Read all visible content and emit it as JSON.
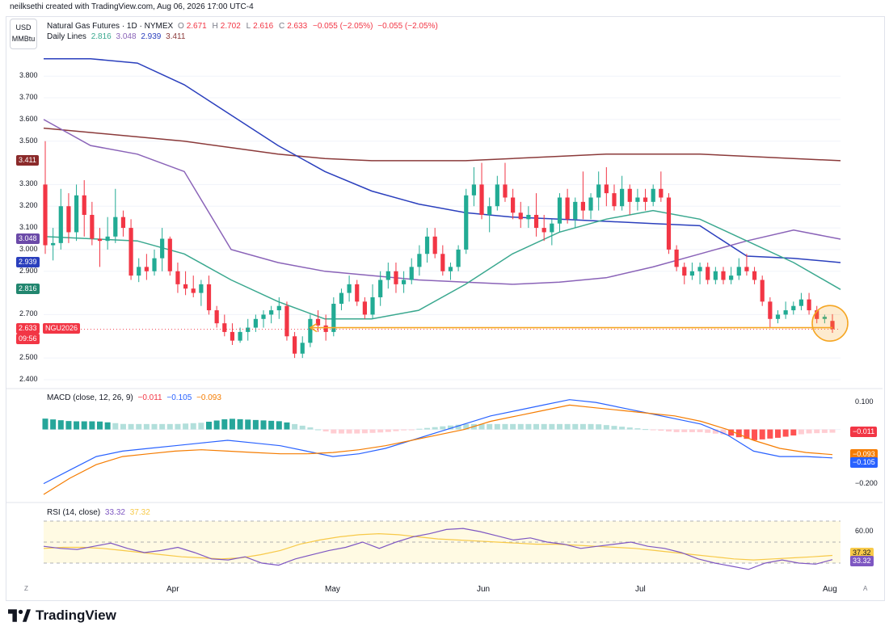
{
  "header": {
    "credit": "neilksethi created with TradingView.com, Aug 06, 2026 17:00 UTC-4"
  },
  "unit": {
    "line1": "USD",
    "line2": "MMBtu"
  },
  "legend": {
    "symbol": "Natural Gas Futures · 1D · NYMEX",
    "o_label": "O",
    "o": "2.671",
    "h_label": "H",
    "h": "2.702",
    "l_label": "L",
    "l": "2.616",
    "c_label": "C",
    "c": "2.633",
    "change": "−0.055 (−2.05%)",
    "change2": "−0.055 (−2.05%)",
    "lines_label": "Daily Lines",
    "line_values": [
      "2.816",
      "3.048",
      "2.939",
      "3.411"
    ]
  },
  "macd_legend": {
    "title": "MACD (close, 12, 26, 9)",
    "v1": "−0.011",
    "v2": "−0.105",
    "v3": "−0.093"
  },
  "rsi_legend": {
    "title": "RSI (14, close)",
    "v1": "33.32",
    "v2": "37.32"
  },
  "colors": {
    "up": "#22ab94",
    "down": "#f23645",
    "ema_green": "#3aa88f",
    "ema_purple": "#8a63b8",
    "sma_blue": "#2a3fbd",
    "sma_brown": "#8b3a3a",
    "macd_line": "#2962ff",
    "signal_line": "#f57c00",
    "rsi_line": "#7e57c2",
    "rsi_ma": "#f7c948",
    "highlight": "#f5a623"
  },
  "price_tags": [
    {
      "value": "3.411",
      "color": "#8b2a2a"
    },
    {
      "value": "3.048",
      "color": "#6b4aa8"
    },
    {
      "value": "2.939",
      "color": "#2a3fbd"
    },
    {
      "value": "2.816",
      "color": "#22866f"
    },
    {
      "value": "2.633",
      "color": "#f23645",
      "extra": "NGU2026",
      "timer": "09:56"
    }
  ],
  "macd_tags": [
    {
      "value": "−0.011",
      "color": "#f23645"
    },
    {
      "value": "−0.093",
      "color": "#f57c00"
    },
    {
      "value": "−0.105",
      "color": "#2962ff"
    }
  ],
  "rsi_tags": [
    {
      "value": "37.32",
      "color": "#f7c948"
    },
    {
      "value": "33.32",
      "color": "#7e57c2"
    }
  ],
  "x_axis": [
    "Apr",
    "May",
    "Jun",
    "Jul",
    "Aug"
  ],
  "corner_labels": {
    "left": "Z",
    "right": "A"
  },
  "brand": "TradingView",
  "chart_data": [
    {
      "type": "candlestick",
      "title": "Natural Gas Futures · 1D · NYMEX",
      "y_ticks": [
        "3.800",
        "3.700",
        "3.600",
        "3.500",
        "3.300",
        "3.200",
        "3.100",
        "3.000",
        "2.900",
        "2.700",
        "2.500",
        "2.400"
      ],
      "ylim": [
        2.37,
        3.92
      ],
      "candles": [
        [
          3.3,
          3.5,
          2.98,
          3.02
        ],
        [
          3.02,
          3.1,
          2.95,
          3.03
        ],
        [
          3.03,
          3.28,
          3.0,
          3.2
        ],
        [
          3.2,
          3.26,
          3.03,
          3.08
        ],
        [
          3.08,
          3.3,
          3.04,
          3.25
        ],
        [
          3.25,
          3.32,
          3.06,
          3.16
        ],
        [
          3.16,
          3.22,
          3.02,
          3.05
        ],
        [
          3.05,
          3.1,
          2.92,
          3.04
        ],
        [
          3.04,
          3.15,
          3.0,
          3.06
        ],
        [
          3.06,
          3.28,
          3.03,
          3.15
        ],
        [
          3.15,
          3.18,
          3.06,
          3.1
        ],
        [
          3.1,
          3.14,
          2.86,
          2.88
        ],
        [
          2.88,
          2.96,
          2.85,
          2.92
        ],
        [
          2.92,
          2.98,
          2.86,
          2.9
        ],
        [
          2.9,
          3.0,
          2.88,
          2.96
        ],
        [
          2.96,
          3.1,
          2.9,
          3.05
        ],
        [
          3.05,
          3.06,
          2.88,
          2.9
        ],
        [
          2.9,
          2.94,
          2.8,
          2.84
        ],
        [
          2.84,
          2.9,
          2.79,
          2.82
        ],
        [
          2.82,
          2.88,
          2.78,
          2.8
        ],
        [
          2.8,
          2.86,
          2.74,
          2.84
        ],
        [
          2.84,
          2.88,
          2.7,
          2.72
        ],
        [
          2.72,
          2.74,
          2.64,
          2.66
        ],
        [
          2.66,
          2.7,
          2.6,
          2.62
        ],
        [
          2.62,
          2.66,
          2.56,
          2.58
        ],
        [
          2.58,
          2.64,
          2.57,
          2.62
        ],
        [
          2.62,
          2.68,
          2.58,
          2.64
        ],
        [
          2.64,
          2.7,
          2.62,
          2.68
        ],
        [
          2.68,
          2.72,
          2.64,
          2.7
        ],
        [
          2.7,
          2.74,
          2.66,
          2.72
        ],
        [
          2.72,
          2.78,
          2.68,
          2.74
        ],
        [
          2.74,
          2.76,
          2.58,
          2.6
        ],
        [
          2.6,
          2.62,
          2.5,
          2.52
        ],
        [
          2.52,
          2.6,
          2.5,
          2.57
        ],
        [
          2.57,
          2.7,
          2.55,
          2.68
        ],
        [
          2.68,
          2.72,
          2.62,
          2.65
        ],
        [
          2.65,
          2.7,
          2.58,
          2.62
        ],
        [
          2.62,
          2.78,
          2.6,
          2.75
        ],
        [
          2.75,
          2.82,
          2.72,
          2.8
        ],
        [
          2.8,
          2.88,
          2.76,
          2.84
        ],
        [
          2.84,
          2.86,
          2.74,
          2.76
        ],
        [
          2.76,
          2.78,
          2.68,
          2.7
        ],
        [
          2.7,
          2.84,
          2.68,
          2.78
        ],
        [
          2.78,
          2.9,
          2.74,
          2.86
        ],
        [
          2.86,
          2.94,
          2.82,
          2.9
        ],
        [
          2.9,
          2.94,
          2.8,
          2.84
        ],
        [
          2.84,
          2.9,
          2.8,
          2.86
        ],
        [
          2.86,
          2.96,
          2.84,
          2.92
        ],
        [
          2.92,
          3.02,
          2.88,
          2.98
        ],
        [
          2.98,
          3.1,
          2.94,
          3.06
        ],
        [
          3.06,
          3.1,
          2.96,
          2.98
        ],
        [
          2.98,
          3.02,
          2.88,
          2.9
        ],
        [
          2.9,
          2.94,
          2.86,
          2.92
        ],
        [
          2.92,
          3.02,
          2.9,
          3.0
        ],
        [
          3.0,
          3.28,
          2.98,
          3.25
        ],
        [
          3.25,
          3.38,
          3.2,
          3.3
        ],
        [
          3.3,
          3.4,
          3.14,
          3.16
        ],
        [
          3.16,
          3.24,
          3.08,
          3.2
        ],
        [
          3.2,
          3.34,
          3.18,
          3.3
        ],
        [
          3.3,
          3.4,
          3.22,
          3.24
        ],
        [
          3.24,
          3.28,
          3.14,
          3.17
        ],
        [
          3.17,
          3.22,
          3.1,
          3.14
        ],
        [
          3.14,
          3.2,
          3.1,
          3.16
        ],
        [
          3.16,
          3.26,
          3.06,
          3.1
        ],
        [
          3.1,
          3.16,
          3.04,
          3.08
        ],
        [
          3.08,
          3.14,
          3.02,
          3.12
        ],
        [
          3.12,
          3.26,
          3.08,
          3.24
        ],
        [
          3.24,
          3.28,
          3.12,
          3.14
        ],
        [
          3.14,
          3.24,
          3.1,
          3.22
        ],
        [
          3.22,
          3.36,
          3.14,
          3.18
        ],
        [
          3.18,
          3.26,
          3.14,
          3.24
        ],
        [
          3.24,
          3.36,
          3.18,
          3.3
        ],
        [
          3.3,
          3.38,
          3.2,
          3.26
        ],
        [
          3.26,
          3.3,
          3.18,
          3.2
        ],
        [
          3.2,
          3.34,
          3.18,
          3.28
        ],
        [
          3.28,
          3.3,
          3.16,
          3.22
        ],
        [
          3.22,
          3.28,
          3.18,
          3.24
        ],
        [
          3.24,
          3.28,
          3.18,
          3.22
        ],
        [
          3.22,
          3.3,
          3.2,
          3.28
        ],
        [
          3.28,
          3.36,
          3.22,
          3.24
        ],
        [
          3.24,
          3.26,
          2.98,
          3.0
        ],
        [
          3.0,
          3.02,
          2.9,
          2.92
        ],
        [
          2.92,
          2.94,
          2.84,
          2.88
        ],
        [
          2.88,
          2.94,
          2.86,
          2.9
        ],
        [
          2.9,
          2.94,
          2.84,
          2.92
        ],
        [
          2.92,
          2.94,
          2.84,
          2.86
        ],
        [
          2.86,
          2.92,
          2.84,
          2.9
        ],
        [
          2.9,
          2.92,
          2.84,
          2.86
        ],
        [
          2.86,
          2.92,
          2.84,
          2.88
        ],
        [
          2.88,
          2.96,
          2.86,
          2.92
        ],
        [
          2.92,
          2.98,
          2.88,
          2.9
        ],
        [
          2.9,
          2.92,
          2.84,
          2.86
        ],
        [
          2.86,
          2.88,
          2.74,
          2.76
        ],
        [
          2.76,
          2.78,
          2.64,
          2.68
        ],
        [
          2.68,
          2.72,
          2.66,
          2.7
        ],
        [
          2.7,
          2.76,
          2.68,
          2.72
        ],
        [
          2.72,
          2.76,
          2.7,
          2.74
        ],
        [
          2.74,
          2.8,
          2.72,
          2.77
        ],
        [
          2.77,
          2.8,
          2.7,
          2.72
        ],
        [
          2.72,
          2.74,
          2.66,
          2.68
        ],
        [
          2.68,
          2.7,
          2.66,
          2.69
        ],
        [
          2.671,
          2.702,
          2.616,
          2.633
        ]
      ],
      "lines": [
        {
          "color_key": "sma_brown",
          "last": "3.411",
          "y": [
            3.56,
            3.54,
            3.52,
            3.5,
            3.47,
            3.44,
            3.42,
            3.41,
            3.41,
            3.41,
            3.42,
            3.43,
            3.44,
            3.44,
            3.44,
            3.43,
            3.42,
            3.41
          ]
        },
        {
          "color_key": "sma_blue",
          "last": "2.939",
          "y": [
            3.88,
            3.88,
            3.86,
            3.76,
            3.62,
            3.48,
            3.36,
            3.27,
            3.21,
            3.17,
            3.15,
            3.14,
            3.13,
            3.12,
            3.11,
            2.97,
            2.96,
            2.94
          ]
        },
        {
          "color_key": "ema_purple",
          "last": "3.048",
          "y": [
            3.6,
            3.48,
            3.44,
            3.36,
            3.0,
            2.94,
            2.9,
            2.88,
            2.86,
            2.85,
            2.84,
            2.85,
            2.87,
            2.92,
            2.98,
            3.04,
            3.09,
            3.048
          ]
        },
        {
          "color_key": "ema_green",
          "last": "2.816",
          "y": [
            3.06,
            3.05,
            3.04,
            2.98,
            2.86,
            2.76,
            2.68,
            2.68,
            2.72,
            2.84,
            2.98,
            3.08,
            3.14,
            3.18,
            3.14,
            3.04,
            2.94,
            2.816
          ]
        }
      ],
      "support_level": 2.64
    },
    {
      "type": "bar",
      "title": "MACD (close, 12, 26, 9)",
      "y_ticks": [
        "0.100",
        "−0.200"
      ],
      "ylim": [
        -0.24,
        0.13
      ],
      "macd": [
        -0.2,
        -0.15,
        -0.1,
        -0.08,
        -0.07,
        -0.06,
        -0.05,
        -0.04,
        -0.05,
        -0.06,
        -0.08,
        -0.1,
        -0.09,
        -0.07,
        -0.04,
        -0.01,
        0.02,
        0.05,
        0.07,
        0.09,
        0.11,
        0.1,
        0.08,
        0.06,
        0.04,
        0.02,
        -0.02,
        -0.08,
        -0.1,
        -0.1,
        -0.105
      ],
      "signal": [
        -0.24,
        -0.18,
        -0.13,
        -0.1,
        -0.09,
        -0.08,
        -0.075,
        -0.08,
        -0.085,
        -0.09,
        -0.09,
        -0.085,
        -0.075,
        -0.06,
        -0.04,
        -0.02,
        0.0,
        0.03,
        0.05,
        0.07,
        0.09,
        0.08,
        0.07,
        0.06,
        0.05,
        0.03,
        0.0,
        -0.04,
        -0.07,
        -0.085,
        -0.093
      ],
      "histogram_last": "−0.011"
    },
    {
      "type": "line",
      "title": "RSI (14, close)",
      "y_ticks": [
        "60.00"
      ],
      "ylim": [
        20,
        80
      ],
      "rsi": [
        46,
        44,
        43,
        46,
        49,
        44,
        40,
        42,
        45,
        40,
        34,
        33,
        36,
        30,
        28,
        34,
        38,
        42,
        45,
        50,
        44,
        50,
        55,
        58,
        62,
        63,
        60,
        56,
        52,
        54,
        50,
        48,
        44,
        46,
        48,
        50,
        46,
        44,
        40,
        34,
        30,
        27,
        24,
        30,
        33,
        30,
        29,
        33.32
      ],
      "rsi_ma": [
        44,
        45,
        45,
        44,
        42,
        40,
        38,
        36,
        35,
        34,
        35,
        38,
        42,
        48,
        52,
        55,
        57,
        58,
        57,
        55,
        53,
        52,
        51,
        50,
        49,
        48,
        48,
        47,
        46,
        45,
        44,
        42,
        40,
        38,
        36,
        34,
        33,
        34,
        35,
        36,
        37.32
      ]
    }
  ]
}
